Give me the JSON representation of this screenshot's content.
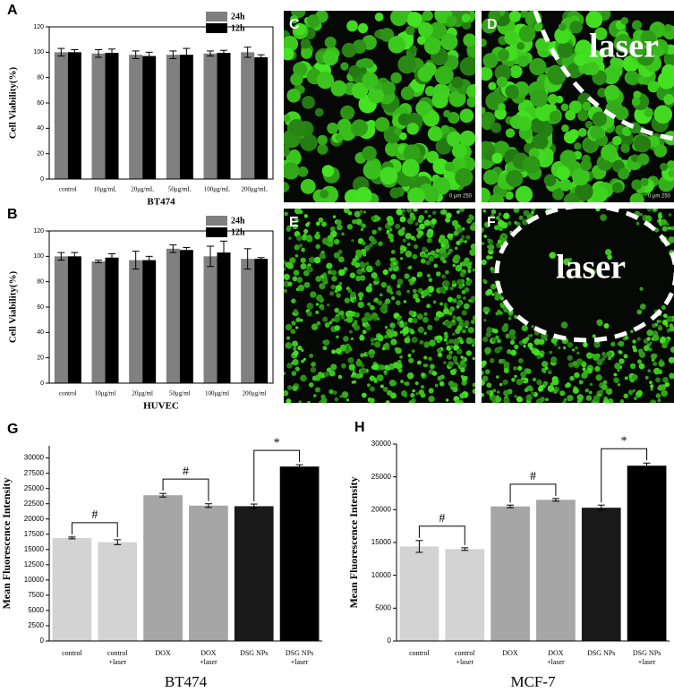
{
  "chart_data": [
    {
      "type": "bar",
      "label": "A",
      "ylabel": "Cell Viability(%)",
      "xlabel": "BT474",
      "categories": [
        "control",
        "10μg/mL",
        "20μg/mL",
        "50μg/mL",
        "100μg/mL",
        "200μg/mL"
      ],
      "series": [
        {
          "name": "24h",
          "color": "#808080",
          "values": [
            100,
            99,
            98,
            98,
            99,
            100
          ],
          "errors": [
            3,
            3,
            3,
            3,
            2,
            4
          ]
        },
        {
          "name": "12h",
          "color": "#000000",
          "values": [
            100,
            99.5,
            97,
            98,
            99.5,
            96
          ],
          "errors": [
            2,
            3,
            3,
            5,
            2,
            2
          ]
        }
      ],
      "ylim": [
        0,
        120
      ],
      "yticks": [
        0,
        20,
        40,
        60,
        80,
        100,
        120
      ],
      "legend": "upper right"
    },
    {
      "type": "bar",
      "label": "B",
      "ylabel": "Cell Viability(%)",
      "xlabel": "HUVEC",
      "categories": [
        "control",
        "10μg/ml",
        "20μg/ml",
        "50μg/ml",
        "100μg/ml",
        "200μg/ml"
      ],
      "series": [
        {
          "name": "24h",
          "color": "#808080",
          "values": [
            100,
            96,
            97,
            106,
            100,
            98
          ],
          "errors": [
            3,
            1,
            7,
            3,
            8,
            8
          ]
        },
        {
          "name": "12h",
          "color": "#000000",
          "values": [
            100,
            99,
            97,
            105,
            103,
            98
          ],
          "errors": [
            3,
            3,
            3,
            2,
            9,
            1
          ]
        }
      ],
      "ylim": [
        0,
        120
      ],
      "yticks": [
        0,
        20,
        40,
        60,
        80,
        100,
        120
      ],
      "legend": "upper right"
    },
    {
      "type": "bar",
      "label": "G",
      "ylabel": "Mean Fluorescence Intensity",
      "xlabel": "BT474",
      "categories": [
        [
          "control"
        ],
        [
          "control",
          "+laser"
        ],
        [
          "DOX"
        ],
        [
          "DOX",
          "+laser"
        ],
        [
          "DSG NPs"
        ],
        [
          "DSG NPs",
          "+laser"
        ]
      ],
      "values": [
        16900,
        16200,
        23900,
        22200,
        22100,
        28600
      ],
      "errors": [
        150,
        400,
        300,
        300,
        350,
        300
      ],
      "colors": [
        "#d3d3d3",
        "#d3d3d3",
        "#a6a6a6",
        "#a6a6a6",
        "#1a1a1a",
        "#000000"
      ],
      "annotations": [
        "#",
        "#",
        "*"
      ],
      "ylim": [
        0,
        32000
      ],
      "yticks": [
        0,
        2500,
        5000,
        7500,
        10000,
        12500,
        15000,
        17500,
        20000,
        22500,
        25000,
        27500,
        30000
      ]
    },
    {
      "type": "bar",
      "label": "H",
      "ylabel": "Mean Fluorescence Intensity",
      "xlabel": "MCF-7",
      "categories": [
        [
          "control"
        ],
        [
          "control",
          "+laser"
        ],
        [
          "DOX"
        ],
        [
          "DOX",
          "+laser"
        ],
        [
          "DSG NPs"
        ],
        [
          "DSG NPs",
          "+laser"
        ]
      ],
      "values": [
        14400,
        14000,
        20500,
        21500,
        20300,
        26700
      ],
      "errors": [
        900,
        200,
        200,
        200,
        400,
        400
      ],
      "colors": [
        "#d3d3d3",
        "#d3d3d3",
        "#a6a6a6",
        "#a6a6a6",
        "#1a1a1a",
        "#000000"
      ],
      "annotations": [
        "#",
        "#",
        "*"
      ],
      "ylim": [
        0,
        30000
      ],
      "yticks": [
        0,
        5000,
        10000,
        15000,
        20000,
        25000,
        30000
      ]
    }
  ],
  "images": [
    {
      "label": "C",
      "scale_bar": "0 μm 250"
    },
    {
      "label": "D",
      "scale_bar": "0 μm 250",
      "annotation": "laser"
    },
    {
      "label": "E"
    },
    {
      "label": "F",
      "annotation": "laser"
    }
  ]
}
